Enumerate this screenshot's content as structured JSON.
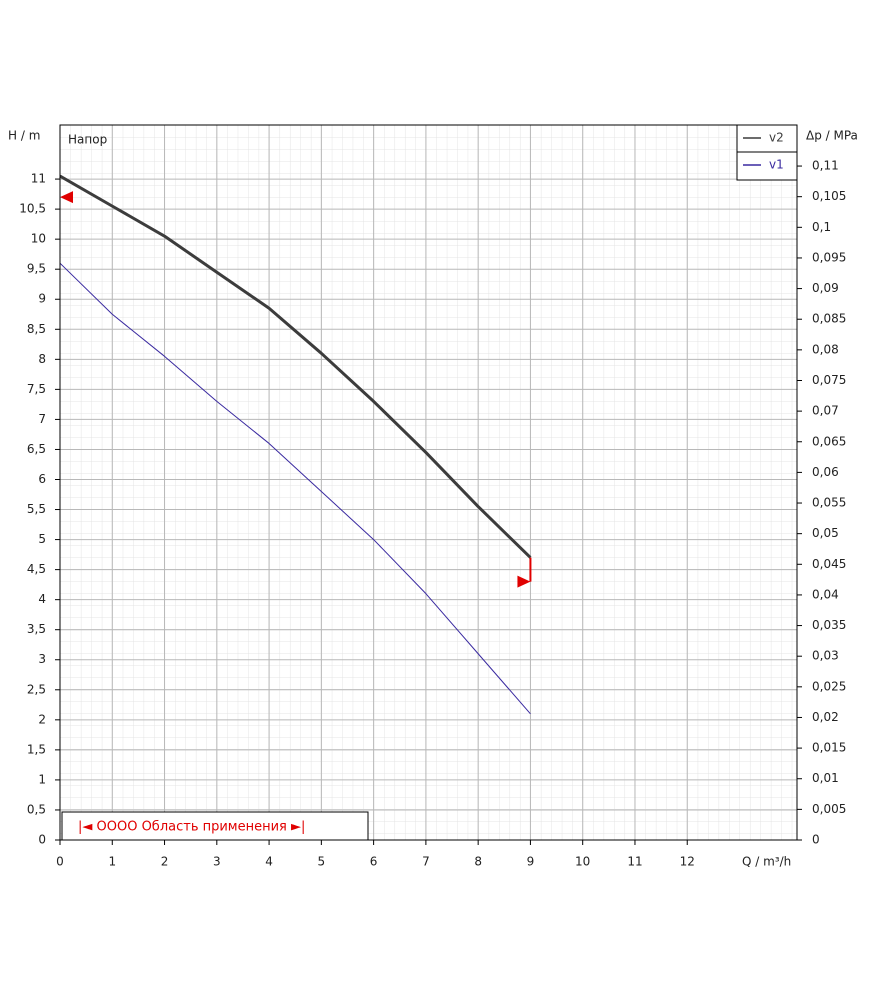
{
  "chart_data": {
    "type": "line",
    "title": "Напор",
    "x_label": "Q / m³/h",
    "y_label": "H / m",
    "y2_label": "Δp / MPa",
    "x": [
      0,
      1,
      2,
      3,
      4,
      5,
      6,
      7,
      8,
      9
    ],
    "series": [
      {
        "name": "v2",
        "color": "#3c3c3c",
        "width": 3,
        "values": [
          11.05,
          10.55,
          10.05,
          9.45,
          8.85,
          8.1,
          7.3,
          6.45,
          5.55,
          4.7
        ]
      },
      {
        "name": "v1",
        "color": "#3a2aa0",
        "width": 1,
        "values": [
          9.6,
          8.75,
          8.05,
          7.3,
          6.6,
          5.8,
          5.0,
          4.1,
          3.1,
          2.1
        ]
      }
    ],
    "markers": [
      {
        "x": 0,
        "y": 10.7,
        "direction": "left"
      },
      {
        "x": 9,
        "y": 4.3,
        "y_end": 4.7,
        "direction": "right"
      }
    ],
    "marker_color": "#e00000",
    "range_label": "|◄ OOOO Область применения ►|",
    "xlim": [
      0,
      14.1
    ],
    "ylim": [
      0,
      11.9
    ],
    "y2lim": [
      0,
      0.1167
    ],
    "xticks": [
      0,
      1,
      2,
      3,
      4,
      5,
      6,
      7,
      8,
      9,
      10,
      11,
      12
    ],
    "yticks": [
      0,
      {
        "value": 0.5,
        "label": "0,5"
      },
      1,
      {
        "value": 1.5,
        "label": "1,5"
      },
      2,
      {
        "value": 2.5,
        "label": "2,5"
      },
      3,
      {
        "value": 3.5,
        "label": "3,5"
      },
      4,
      {
        "value": 4.5,
        "label": "4,5"
      },
      5,
      {
        "value": 5.5,
        "label": "5,5"
      },
      6,
      {
        "value": 6.5,
        "label": "6,5"
      },
      7,
      {
        "value": 7.5,
        "label": "7,5"
      },
      8,
      {
        "value": 8.5,
        "label": "8,5"
      },
      9,
      {
        "value": 9.5,
        "label": "9,5"
      },
      10,
      {
        "value": 10.5,
        "label": "10,5"
      },
      11
    ],
    "y2ticks": [
      0,
      {
        "value": 0.005,
        "label": "0,005"
      },
      {
        "value": 0.01,
        "label": "0,01"
      },
      {
        "value": 0.015,
        "label": "0,015"
      },
      {
        "value": 0.02,
        "label": "0,02"
      },
      {
        "value": 0.025,
        "label": "0,025"
      },
      {
        "value": 0.03,
        "label": "0,03"
      },
      {
        "value": 0.035,
        "label": "0,035"
      },
      {
        "value": 0.04,
        "label": "0,04"
      },
      {
        "value": 0.045,
        "label": "0,045"
      },
      {
        "value": 0.05,
        "label": "0,05"
      },
      {
        "value": 0.055,
        "label": "0,055"
      },
      {
        "value": 0.06,
        "label": "0,06"
      },
      {
        "value": 0.065,
        "label": "0,065"
      },
      {
        "value": 0.07,
        "label": "0,07"
      },
      {
        "value": 0.075,
        "label": "0,075"
      },
      {
        "value": 0.08,
        "label": "0,08"
      },
      {
        "value": 0.085,
        "label": "0,085"
      },
      {
        "value": 0.09,
        "label": "0,09"
      },
      {
        "value": 0.095,
        "label": "0,095"
      },
      {
        "value": 0.1,
        "label": "0,1"
      },
      {
        "value": 0.105,
        "label": "0,105"
      },
      {
        "value": 0.11,
        "label": "0,11"
      }
    ],
    "grid": true,
    "legend": "upper right"
  }
}
